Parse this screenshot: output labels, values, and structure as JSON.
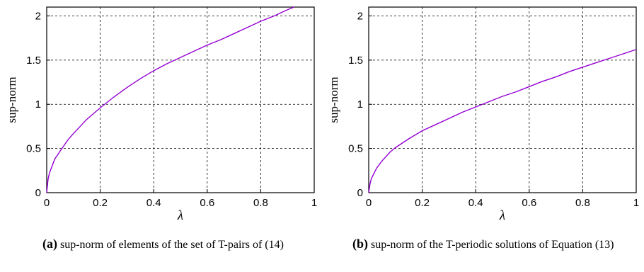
{
  "chart_data": [
    {
      "type": "line",
      "xlabel": "λ",
      "ylabel": "sup-norm",
      "xlim": [
        0,
        1
      ],
      "ylim": [
        0,
        2.1
      ],
      "x_ticks": [
        "0",
        "0.2",
        "0.4",
        "0.6",
        "0.8",
        "1"
      ],
      "y_ticks": [
        "0",
        "0.5",
        "1",
        "1.5",
        "2"
      ],
      "grid": true,
      "line_color": "#9400d3",
      "series": [
        {
          "x": [
            0,
            0.005,
            0.01,
            0.02,
            0.03,
            0.05,
            0.08,
            0.1,
            0.15,
            0.2,
            0.25,
            0.3,
            0.35,
            0.4,
            0.45,
            0.5,
            0.55,
            0.6,
            0.65,
            0.7,
            0.75,
            0.8,
            0.85,
            0.9,
            0.925
          ],
          "y": [
            0,
            0.15,
            0.22,
            0.3,
            0.38,
            0.47,
            0.6,
            0.67,
            0.83,
            0.96,
            1.08,
            1.19,
            1.29,
            1.38,
            1.46,
            1.53,
            1.6,
            1.67,
            1.73,
            1.8,
            1.87,
            1.94,
            2.0,
            2.07,
            2.1
          ]
        }
      ],
      "caption_label": "(a)",
      "caption_text": "sup-norm of elements of the set of T-pairs of (14)"
    },
    {
      "type": "line",
      "xlabel": "λ",
      "ylabel": "sup-norm",
      "xlim": [
        0,
        1
      ],
      "ylim": [
        0,
        2.1
      ],
      "x_ticks": [
        "0",
        "0.2",
        "0.4",
        "0.6",
        "0.8",
        "1"
      ],
      "y_ticks": [
        "0",
        "0.5",
        "1",
        "1.5",
        "2"
      ],
      "grid": true,
      "line_color": "#9400d3",
      "series": [
        {
          "x": [
            0,
            0.005,
            0.01,
            0.02,
            0.03,
            0.05,
            0.08,
            0.1,
            0.15,
            0.2,
            0.25,
            0.3,
            0.35,
            0.4,
            0.45,
            0.5,
            0.55,
            0.6,
            0.65,
            0.7,
            0.75,
            0.8,
            0.85,
            0.9,
            0.95,
            1.0
          ],
          "y": [
            0,
            0.1,
            0.16,
            0.22,
            0.28,
            0.36,
            0.46,
            0.51,
            0.61,
            0.7,
            0.77,
            0.84,
            0.91,
            0.97,
            1.03,
            1.09,
            1.14,
            1.2,
            1.26,
            1.31,
            1.37,
            1.42,
            1.47,
            1.52,
            1.57,
            1.62
          ]
        }
      ],
      "caption_label": "(b)",
      "caption_text": "sup-norm of the T-periodic solutions of Equation (13)"
    }
  ]
}
